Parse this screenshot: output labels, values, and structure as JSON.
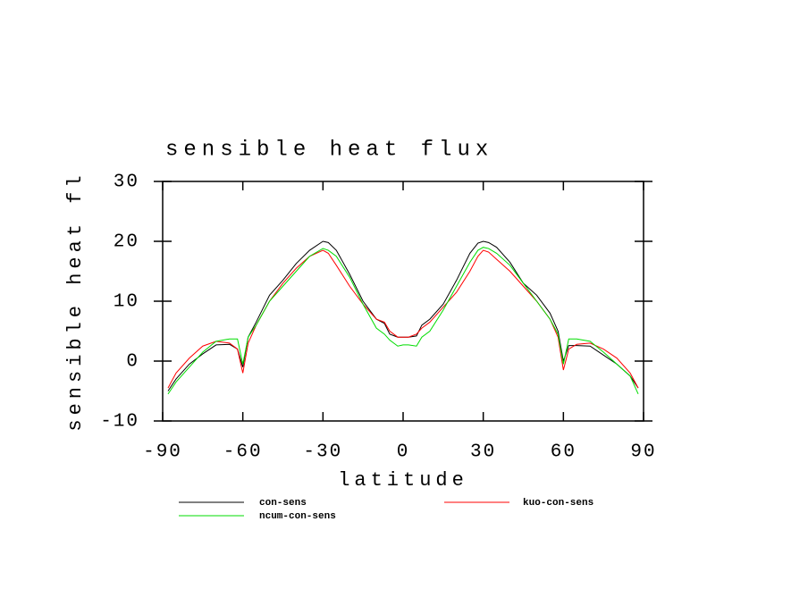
{
  "chart_data": {
    "type": "line",
    "title": "sensible heat flux",
    "x_label": "latitude",
    "y_label": "sensible heat fl",
    "x": [
      -88,
      -85,
      -80,
      -75,
      -70,
      -65,
      -62,
      -60,
      -58,
      -55,
      -50,
      -45,
      -40,
      -35,
      -30,
      -28,
      -25,
      -20,
      -15,
      -10,
      -7,
      -5,
      -2,
      0,
      2,
      5,
      7,
      10,
      15,
      20,
      25,
      28,
      30,
      32,
      35,
      40,
      45,
      50,
      55,
      58,
      60,
      62,
      65,
      70,
      75,
      80,
      85,
      88
    ],
    "series": [
      {
        "name": "con-sens",
        "color": "#000000",
        "values": [
          -5,
          -3,
          -0.5,
          1.2,
          2.7,
          2.8,
          2,
          -1,
          4,
          6.5,
          11,
          13.5,
          16.3,
          18.5,
          20,
          19.8,
          18.5,
          14.5,
          10,
          7,
          6.3,
          4.5,
          4,
          4,
          4,
          4.2,
          6,
          7,
          9.5,
          13.5,
          18,
          19.7,
          20,
          19.8,
          19,
          16.5,
          13,
          11,
          8,
          5,
          0,
          2.6,
          2.6,
          2.5,
          1,
          -0.5,
          -2.5,
          -4.5
        ]
      },
      {
        "name": "kuo-con-sens",
        "color": "#ff0000",
        "values": [
          -4.5,
          -2,
          0.5,
          2.5,
          3.3,
          3,
          2,
          -2,
          3,
          6,
          10,
          13,
          15.5,
          17.5,
          18.5,
          18,
          16,
          12.5,
          9.5,
          7,
          6.5,
          5,
          4,
          4,
          4,
          4.5,
          5.5,
          6.5,
          9,
          11.5,
          15,
          17.5,
          18.5,
          18.2,
          17,
          15,
          12.5,
          10,
          7,
          4,
          -1.5,
          2,
          2.8,
          3,
          2,
          0.5,
          -2,
          -4.5
        ]
      },
      {
        "name": "ncum-con-sens",
        "color": "#00dd00",
        "values": [
          -5.5,
          -3.5,
          -1,
          1.5,
          3.3,
          3.7,
          3.7,
          -0.5,
          4,
          6,
          10,
          12.5,
          15,
          17.5,
          18.8,
          18.5,
          17.5,
          14,
          9.5,
          5.5,
          4.5,
          3.5,
          2.5,
          2.7,
          2.7,
          2.5,
          4,
          5,
          8.5,
          12.5,
          16.5,
          18.5,
          19,
          18.8,
          18,
          16,
          13,
          10,
          7,
          4.5,
          -0.5,
          3.7,
          3.7,
          3.3,
          1.5,
          -0.5,
          -2.5,
          -5.5
        ]
      }
    ],
    "xlim": [
      -90,
      90
    ],
    "xticks": [
      -90,
      -60,
      -30,
      0,
      30,
      60,
      90
    ],
    "ylim": [
      -10,
      30
    ],
    "yticks": [
      -10,
      0,
      10,
      20,
      30
    ]
  }
}
